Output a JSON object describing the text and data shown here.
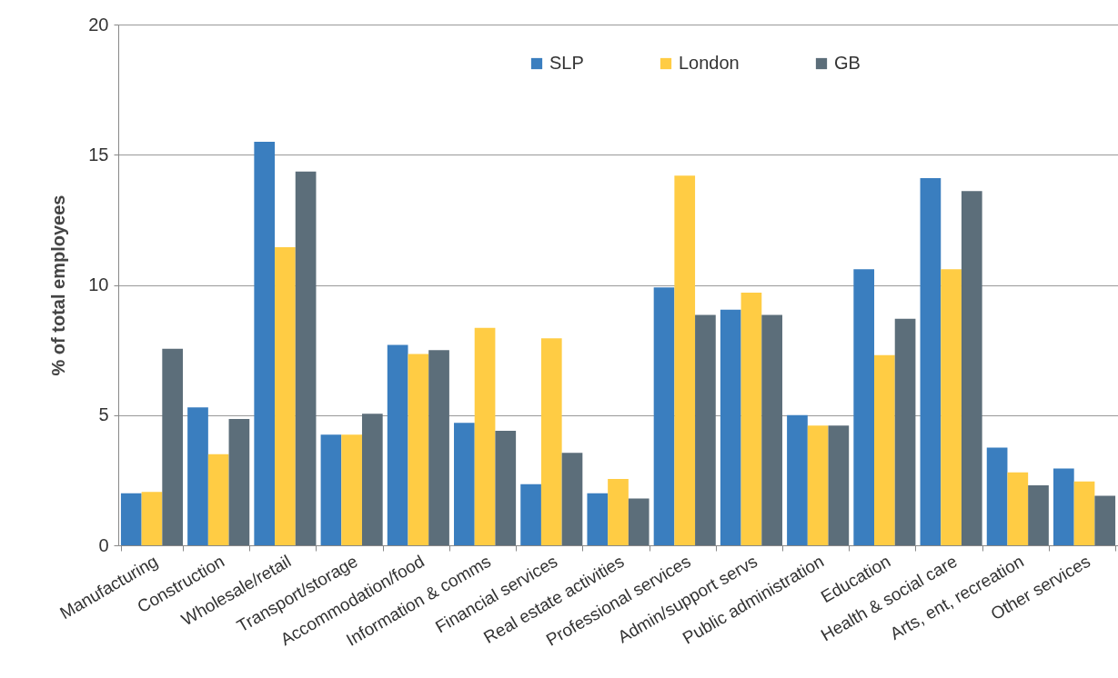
{
  "chart_data": {
    "type": "bar",
    "ylabel": "% of total employees",
    "categories": [
      "Manufacturing",
      "Construction",
      "Wholesale/retail",
      "Transport/storage",
      "Accommodation/food",
      "Information & comms",
      "Financial services",
      "Real estate activities",
      "Professional services",
      "Admin/support servs",
      "Public administration",
      "Education",
      "Health & social care",
      "Arts, ent, recreation",
      "Other services"
    ],
    "series": [
      {
        "name": "SLP",
        "color": "#3a7ebf",
        "values": [
          2.0,
          5.3,
          15.5,
          4.25,
          7.7,
          4.7,
          2.35,
          2.0,
          9.9,
          9.05,
          5.0,
          10.6,
          14.1,
          3.75,
          2.95
        ]
      },
      {
        "name": "London",
        "color": "#ffcc44",
        "values": [
          2.05,
          3.5,
          11.45,
          4.25,
          7.35,
          8.35,
          7.95,
          2.55,
          14.2,
          9.7,
          4.6,
          7.3,
          10.6,
          2.8,
          2.45
        ]
      },
      {
        "name": "GB",
        "color": "#5c6e7a",
        "values": [
          7.55,
          4.85,
          14.35,
          5.05,
          7.5,
          4.4,
          3.55,
          1.8,
          8.85,
          8.85,
          4.6,
          8.7,
          13.6,
          2.3,
          1.9
        ]
      }
    ],
    "ylim": [
      0,
      20
    ],
    "yticks": [
      0,
      5,
      10,
      15,
      20
    ],
    "grid": "y",
    "legend": "top"
  }
}
